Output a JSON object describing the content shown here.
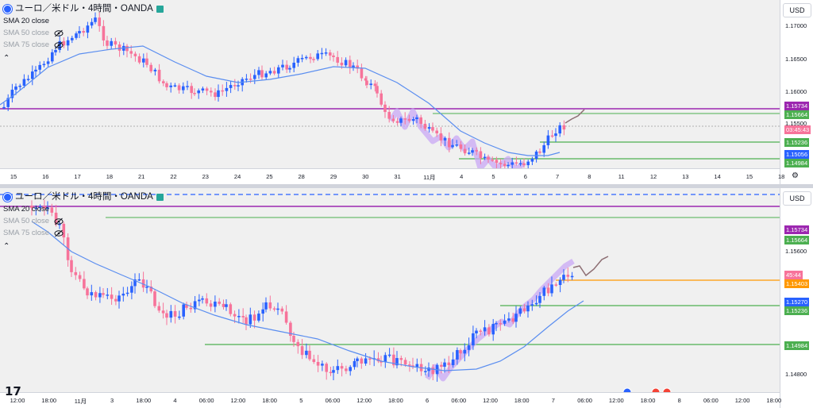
{
  "top": {
    "title": "ユーロ／米ドル・4時間・OANDA",
    "indicators": [
      "SMA 20 close",
      "SMA 50 close",
      "SMA 75 close"
    ],
    "currency": "USD",
    "price_ticks": [
      "1.17000",
      "1.16500",
      "1.16000",
      "1.15500"
    ],
    "labels": {
      "l1": "1.15734",
      "l2": "1.15664",
      "countdown": "03:45:43",
      "l3": "1.15236",
      "l4": "1.15056",
      "l5": "1.14984"
    },
    "time_ticks": [
      "15",
      "16",
      "17",
      "18",
      "21",
      "22",
      "23",
      "24",
      "25",
      "28",
      "29",
      "30",
      "31",
      "11月",
      "4",
      "5",
      "6",
      "7",
      "8",
      "11",
      "12",
      "13",
      "14",
      "15",
      "18"
    ]
  },
  "bottom": {
    "title": "ユーロ／米ドル・4時間・OANDA",
    "indicators": [
      "SMA 20 close",
      "SMA 50 close",
      "SMA 75 close"
    ],
    "currency": "USD",
    "price_ticks": [
      "1.15600",
      "1.14800"
    ],
    "labels": {
      "l1": "1.15734",
      "l2": "1.15664",
      "countdown": "45:44",
      "l_orange": "1.15403",
      "l_blue": "1.15270",
      "l3": "1.15236",
      "l5": "1.14984"
    },
    "time_ticks": [
      "12:00",
      "18:00",
      "11月",
      "3",
      "18:00",
      "4",
      "06:00",
      "12:00",
      "18:00",
      "5",
      "06:00",
      "12:00",
      "18:00",
      "6",
      "06:00",
      "12:00",
      "18:00",
      "7",
      "06:00",
      "12:00",
      "18:00",
      "8",
      "06:00",
      "12:00",
      "18:00"
    ]
  },
  "colors": {
    "up": "#2962ff",
    "down": "#f7739a",
    "sma": "#5b8ef0",
    "purple": "#9c27b0",
    "green": "#4caf50",
    "blue_label": "#2962ff",
    "orange": "#ff9800",
    "dash_blue": "#2962ff"
  },
  "icons": {
    "logo": "tradingview-logo",
    "settings": "gear-icon",
    "eye": "eye-crossed-icon"
  }
}
